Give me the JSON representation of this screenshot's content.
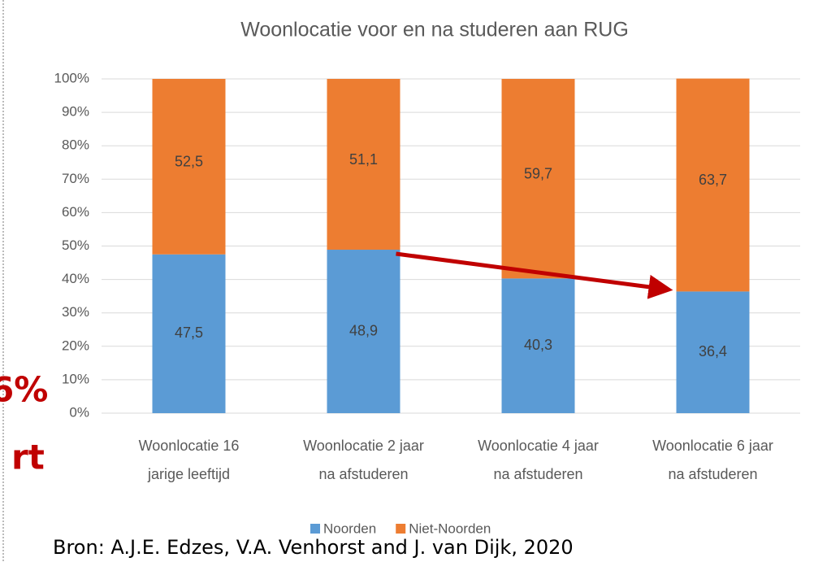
{
  "chart_data": {
    "type": "stacked_bar",
    "title": "Woonlocatie voor en na studeren aan RUG",
    "categories": [
      [
        "Woonlocatie 16",
        "jarige leeftijd"
      ],
      [
        "Woonlocatie 2 jaar",
        "na afstuderen"
      ],
      [
        "Woonlocatie 4 jaar",
        "na afstuderen"
      ],
      [
        "Woonlocatie 6 jaar",
        "na afstuderen"
      ]
    ],
    "series": [
      {
        "name": "Noorden",
        "color": "#5b9bd5",
        "values": [
          47.5,
          48.9,
          40.3,
          36.4
        ],
        "value_labels": [
          "47,5",
          "48,9",
          "40,3",
          "36,4"
        ]
      },
      {
        "name": "Niet-Noorden",
        "color": "#ed7d31",
        "values": [
          52.5,
          51.1,
          59.7,
          63.7
        ],
        "value_labels": [
          "52,5",
          "51,1",
          "59,7",
          "63,7"
        ]
      }
    ],
    "ylim": [
      0,
      100
    ],
    "yticks": [
      {
        "value": 0,
        "label": "0%"
      },
      {
        "value": 10,
        "label": "10%"
      },
      {
        "value": 20,
        "label": "20%"
      },
      {
        "value": 30,
        "label": "30%"
      },
      {
        "value": 40,
        "label": "40%"
      },
      {
        "value": 50,
        "label": "50%"
      },
      {
        "value": 60,
        "label": "60%"
      },
      {
        "value": 70,
        "label": "70%"
      },
      {
        "value": 80,
        "label": "80%"
      },
      {
        "value": 90,
        "label": "90%"
      },
      {
        "value": 100,
        "label": "100%"
      }
    ],
    "grid": true,
    "legend": "bottom"
  },
  "overlay": {
    "fragment_1": "6%",
    "fragment_2": "rt",
    "source": "Bron: A.J.E. Edzes, V.A. Venhorst and J. van Dijk, 2020"
  }
}
